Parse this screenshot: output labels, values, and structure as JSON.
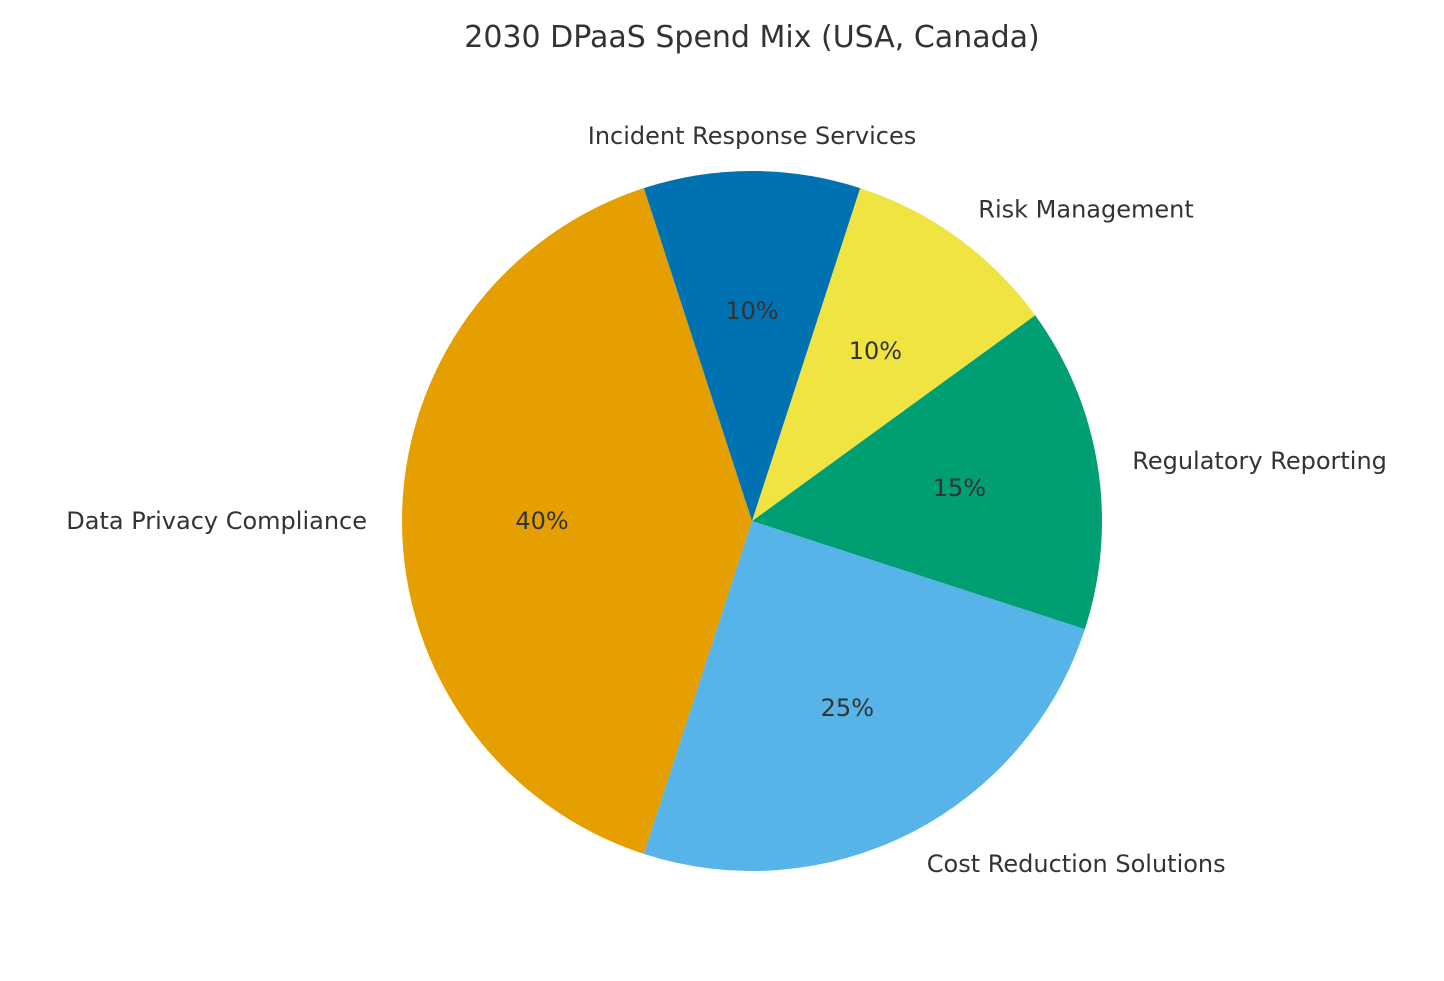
{
  "chart_data": {
    "type": "pie",
    "title": "2030 DPaaS Spend Mix (USA, Canada)",
    "slices": [
      {
        "label": "Data Privacy Compliance",
        "value": 40,
        "pct_label": "40%",
        "color": "#E69F00"
      },
      {
        "label": "Cost Reduction Solutions",
        "value": 25,
        "pct_label": "25%",
        "color": "#56B4E9"
      },
      {
        "label": "Regulatory Reporting",
        "value": 15,
        "pct_label": "15%",
        "color": "#009E73"
      },
      {
        "label": "Risk Management",
        "value": 10,
        "pct_label": "10%",
        "color": "#F0E442"
      },
      {
        "label": "Incident Response Services",
        "value": 10,
        "pct_label": "10%",
        "color": "#0072B2"
      }
    ],
    "start_angle_deg": 108,
    "direction": "counterclockwise",
    "legend": "none"
  }
}
